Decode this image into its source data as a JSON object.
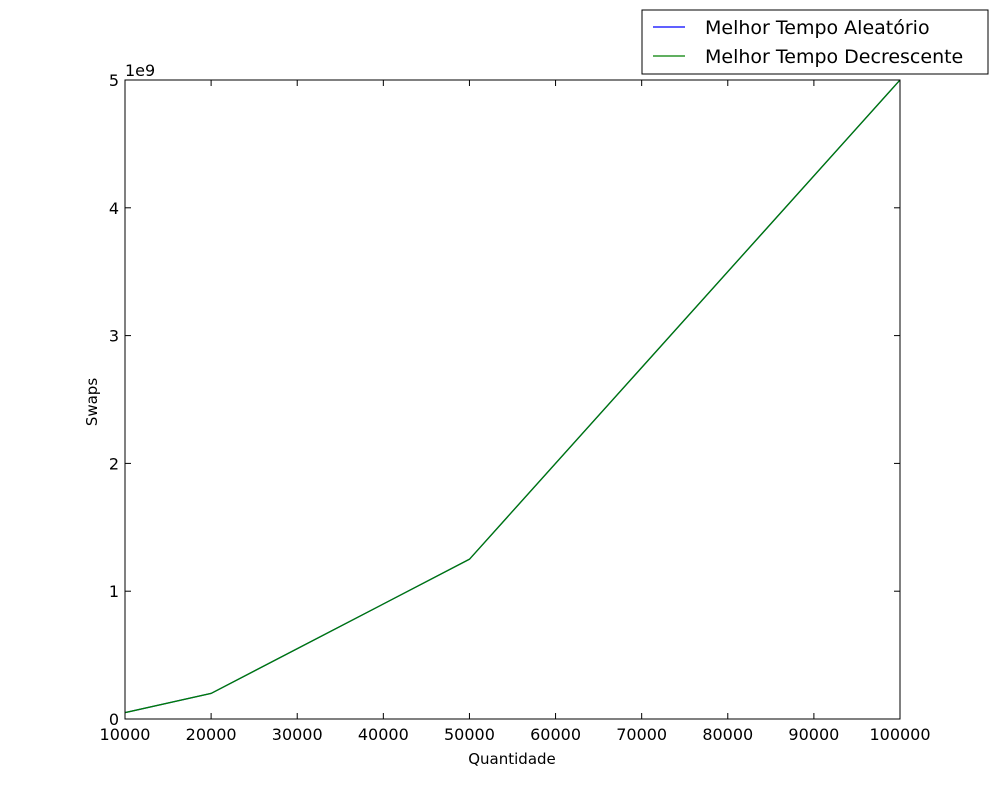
{
  "chart_data": {
    "type": "line",
    "title": "",
    "xlabel": "Quantidade",
    "ylabel": "Swaps",
    "y_offset_label": "1e9",
    "xlim": [
      10000,
      100000
    ],
    "ylim": [
      0,
      5
    ],
    "x_ticks": [
      10000,
      20000,
      30000,
      40000,
      50000,
      60000,
      70000,
      80000,
      90000,
      100000
    ],
    "x_tick_labels": [
      "10000",
      "20000",
      "30000",
      "40000",
      "50000",
      "60000",
      "70000",
      "80000",
      "90000",
      "100000"
    ],
    "y_ticks": [
      0,
      1,
      2,
      3,
      4,
      5
    ],
    "y_tick_labels": [
      "0",
      "1",
      "2",
      "3",
      "4",
      "5"
    ],
    "y_scale_factor": 1000000000,
    "grid": false,
    "legend_position": "top-right, outside plot",
    "x": [
      10000,
      20000,
      50000,
      100000
    ],
    "series": [
      {
        "name": "Melhor Tempo Aleatório",
        "color": "#0000ff",
        "values": [
          50000000,
          200000000,
          1250000000,
          5000000000
        ]
      },
      {
        "name": "Melhor Tempo Decrescente",
        "color": "#007f00",
        "values": [
          50000000,
          200000000,
          1250000000,
          5000000000
        ]
      }
    ]
  }
}
